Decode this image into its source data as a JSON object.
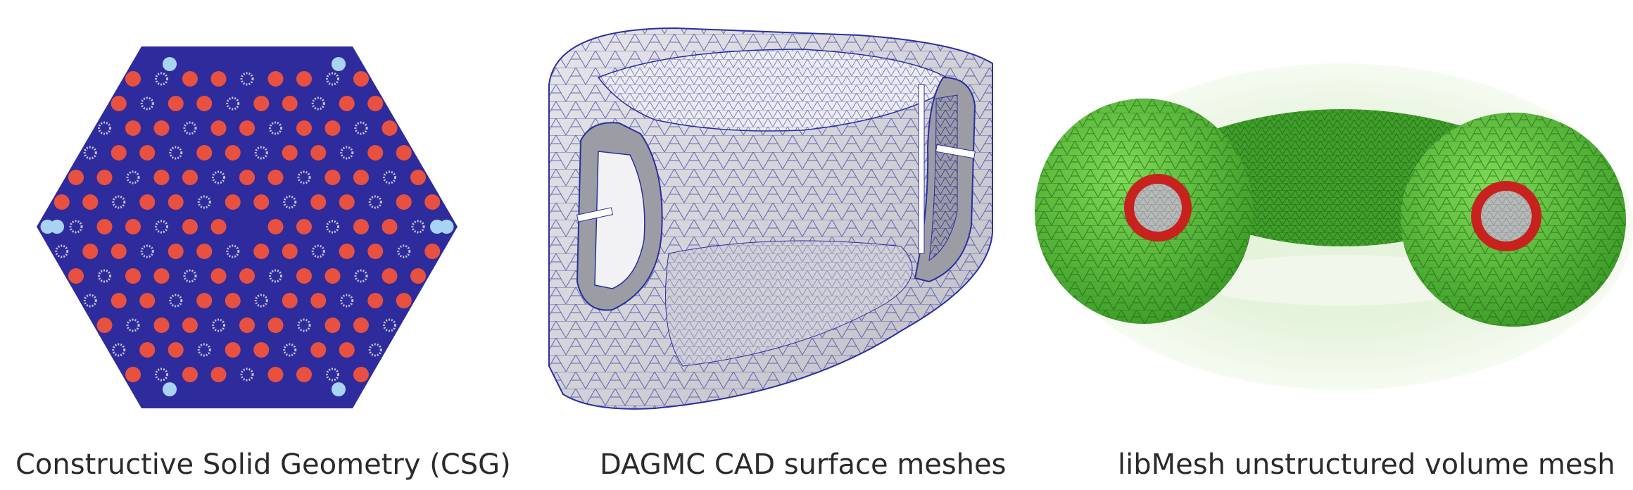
{
  "captions": {
    "csg": "Constructive Solid Geometry (CSG)",
    "dagmc": "DAGMC CAD surface meshes",
    "libmesh": "libMesh unstructured volume mesh"
  },
  "colors": {
    "csg_background": "#2e2c9c",
    "fuel_pin": "#e8513f",
    "guide_tube": "#a9d3f3",
    "burnable_cluster": "#c8c0d8",
    "cad_surface": "#d7d7dc",
    "cad_edges": "#2b2f9e",
    "torus_green": "#4cbf35",
    "torus_wire": "#1f5d14",
    "coil_red": "#c8221e"
  },
  "icons": {
    "csg": "hexagonal-fuel-assembly-image",
    "dagmc": "cad-vessel-surface-mesh-image",
    "libmesh": "torus-volume-mesh-image"
  }
}
